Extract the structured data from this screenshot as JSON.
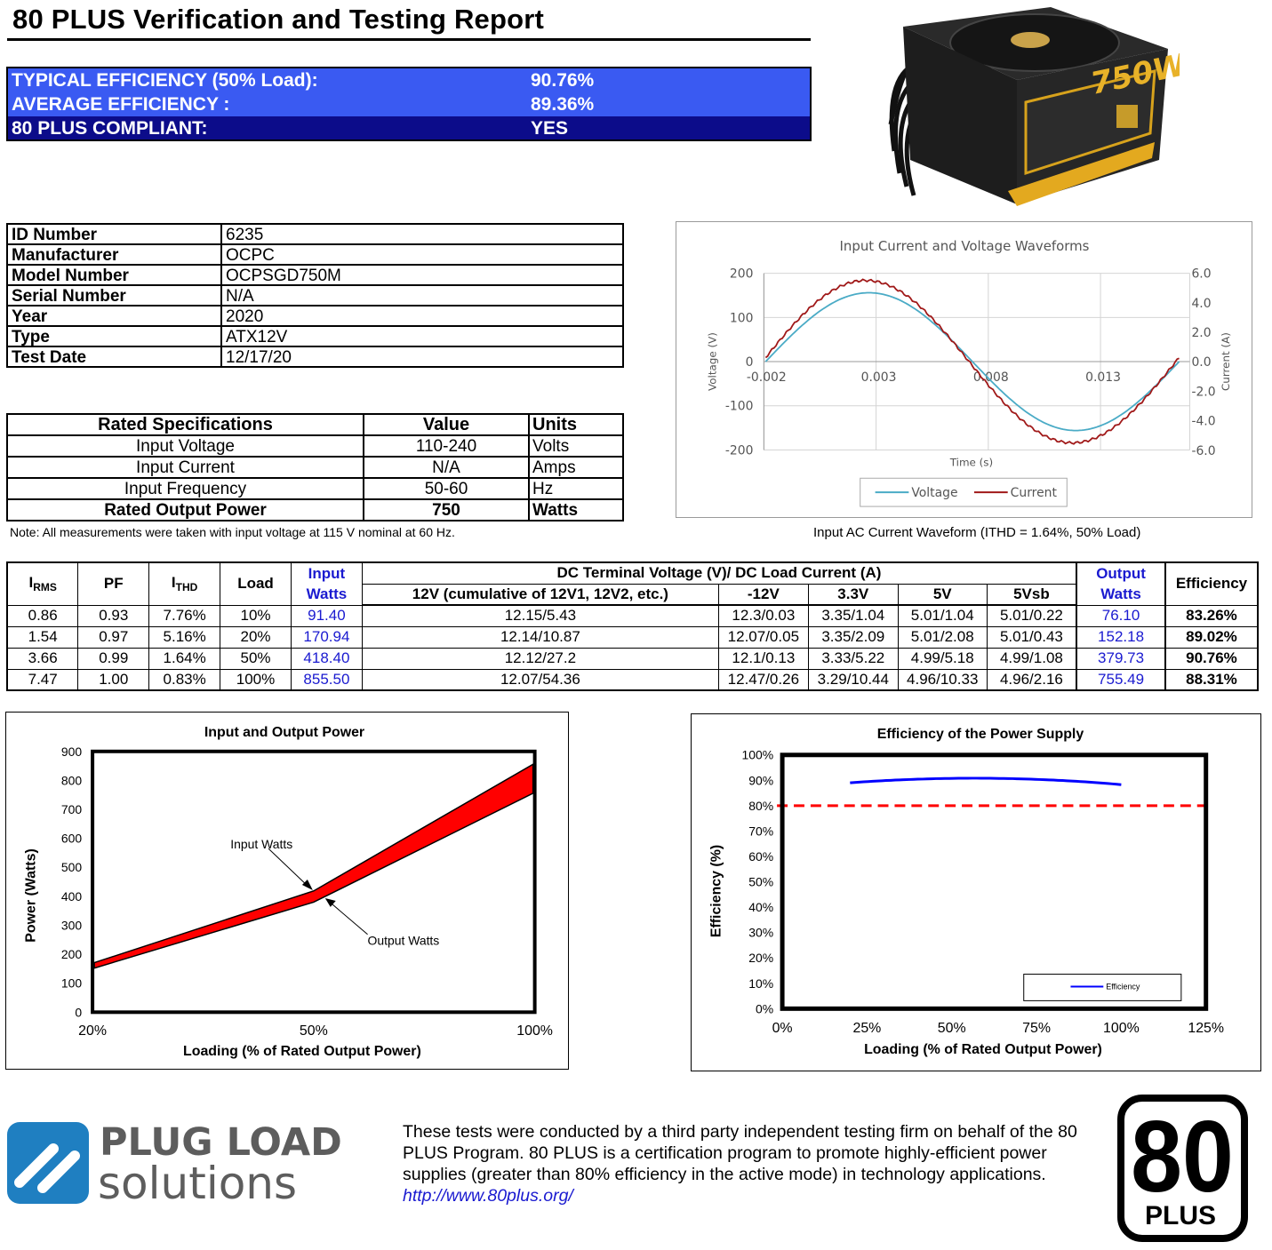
{
  "header": {
    "title": "80 PLUS Verification and Testing Report"
  },
  "summary": {
    "typical_label": "TYPICAL EFFICIENCY (50% Load):",
    "typical_value": "90.76%",
    "average_label": "AVERAGE EFFICIENCY :",
    "average_value": "89.36%",
    "compliant_label": "80 PLUS COMPLIANT:",
    "compliant_value": "YES"
  },
  "photo": {
    "label": "750W"
  },
  "id_table": [
    {
      "key": "ID Number",
      "value": "6235"
    },
    {
      "key": "Manufacturer",
      "value": "OCPC"
    },
    {
      "key": "Model Number",
      "value": "OCPSGD750M"
    },
    {
      "key": "Serial Number",
      "value": "N/A"
    },
    {
      "key": "Year",
      "value": "2020"
    },
    {
      "key": "Type",
      "value": "ATX12V"
    },
    {
      "key": "Test Date",
      "value": "12/17/20"
    }
  ],
  "rated_specs": {
    "headers": [
      "Rated Specifications",
      "Value",
      "Units"
    ],
    "rows": [
      {
        "name": "Input Voltage",
        "value": "110-240",
        "unit": "Volts"
      },
      {
        "name": "Input Current",
        "value": "N/A",
        "unit": "Amps"
      },
      {
        "name": "Input Frequency",
        "value": "50-60",
        "unit": "Hz"
      },
      {
        "name": "Rated Output Power",
        "value": "750",
        "unit": "Watts"
      }
    ]
  },
  "note": "Note: All measurements were taken with input voltage at 115 V nominal at 60 Hz.",
  "waveform_chart": {
    "title": "Input Current and Voltage Waveforms",
    "xlabel": "Time (s)",
    "ylabel_left": "Voltage (V)",
    "ylabel_right": "Current (A)",
    "x_ticks": [
      "-0.002",
      "0.003",
      "0.008",
      "0.013"
    ],
    "y_left_ticks": [
      "200",
      "100",
      "0",
      "-100",
      "-200"
    ],
    "y_right_ticks": [
      "6.0",
      "4.0",
      "2.0",
      "0.0",
      "-2.0",
      "-4.0",
      "-6.0"
    ],
    "legend": [
      "Voltage",
      "Current"
    ],
    "caption": "Input AC Current Waveform (ITHD = 1.64%, 50% Load)",
    "colors": {
      "voltage": "#4aabc6",
      "current": "#a01818"
    }
  },
  "data_table": {
    "headers": {
      "irms": "I",
      "irms_sub": "RMS",
      "pf": "PF",
      "ithd": "I",
      "ithd_sub": "THD",
      "load": "Load",
      "input_watts_1": "Input",
      "input_watts_2": "Watts",
      "dc_group": "DC Terminal Voltage (V)/ DC Load Current (A)",
      "v12": "12V (cumulative of 12V1, 12V2, etc.)",
      "vn12": "-12V",
      "v33": "3.3V",
      "v5": "5V",
      "v5sb": "5Vsb",
      "output_watts_1": "Output",
      "output_watts_2": "Watts",
      "efficiency": "Efficiency"
    },
    "rows": [
      [
        "0.86",
        "0.93",
        "7.76%",
        "10%",
        "91.40",
        "12.15/5.43",
        "12.3/0.03",
        "3.35/1.04",
        "5.01/1.04",
        "5.01/0.22",
        "76.10",
        "83.26%"
      ],
      [
        "1.54",
        "0.97",
        "5.16%",
        "20%",
        "170.94",
        "12.14/10.87",
        "12.07/0.05",
        "3.35/2.09",
        "5.01/2.08",
        "5.01/0.43",
        "152.18",
        "89.02%"
      ],
      [
        "3.66",
        "0.99",
        "1.64%",
        "50%",
        "418.40",
        "12.12/27.2",
        "12.1/0.13",
        "3.33/5.22",
        "4.99/5.18",
        "4.99/1.08",
        "379.73",
        "90.76%"
      ],
      [
        "7.47",
        "1.00",
        "0.83%",
        "100%",
        "855.50",
        "12.07/54.36",
        "12.47/0.26",
        "3.29/10.44",
        "4.96/10.33",
        "4.96/2.16",
        "755.49",
        "88.31%"
      ]
    ]
  },
  "chart_data": [
    {
      "type": "area",
      "title": "Input and Output Power",
      "xlabel": "Loading (% of Rated Output Power)",
      "ylabel": "Power (Watts)",
      "categories": [
        "20%",
        "50%",
        "100%"
      ],
      "series": [
        {
          "name": "Input Watts",
          "values": [
            170.94,
            418.4,
            855.5
          ]
        },
        {
          "name": "Output Watts",
          "values": [
            152.18,
            379.73,
            755.49
          ]
        }
      ],
      "ylim": [
        0,
        900
      ],
      "y_ticks": [
        "0",
        "100",
        "200",
        "300",
        "400",
        "500",
        "600",
        "700",
        "800",
        "900"
      ],
      "fill_color": "#ff0000"
    },
    {
      "type": "line",
      "title": "Efficiency of the Power Supply",
      "xlabel": "Loading (% of Rated Output Power)",
      "ylabel": "Efficiency (%)",
      "x": [
        20,
        50,
        100
      ],
      "x_ticks": [
        "0%",
        "25%",
        "50%",
        "75%",
        "100%",
        "125%"
      ],
      "y_ticks": [
        "0%",
        "10%",
        "20%",
        "30%",
        "40%",
        "50%",
        "60%",
        "70%",
        "80%",
        "90%",
        "100%"
      ],
      "xlim": [
        0,
        125
      ],
      "ylim": [
        0,
        100
      ],
      "series": [
        {
          "name": "Efficiency",
          "values": [
            89.02,
            90.76,
            88.31
          ]
        }
      ],
      "threshold": 80,
      "colors": {
        "line": "#0000ff",
        "threshold": "#ff0000"
      }
    }
  ],
  "footer": {
    "logo_line1": "PLUG LOAD",
    "logo_line2": "solutions",
    "text": "These tests were conducted by a third party independent testing firm on behalf of the 80 PLUS Program. 80 PLUS is a certification program to promote highly-efficient power supplies (greater than 80% efficiency in the active mode) in technology applications.",
    "url": "http://www.80plus.org/",
    "badge_number": "80",
    "badge_word": "PLUS"
  }
}
